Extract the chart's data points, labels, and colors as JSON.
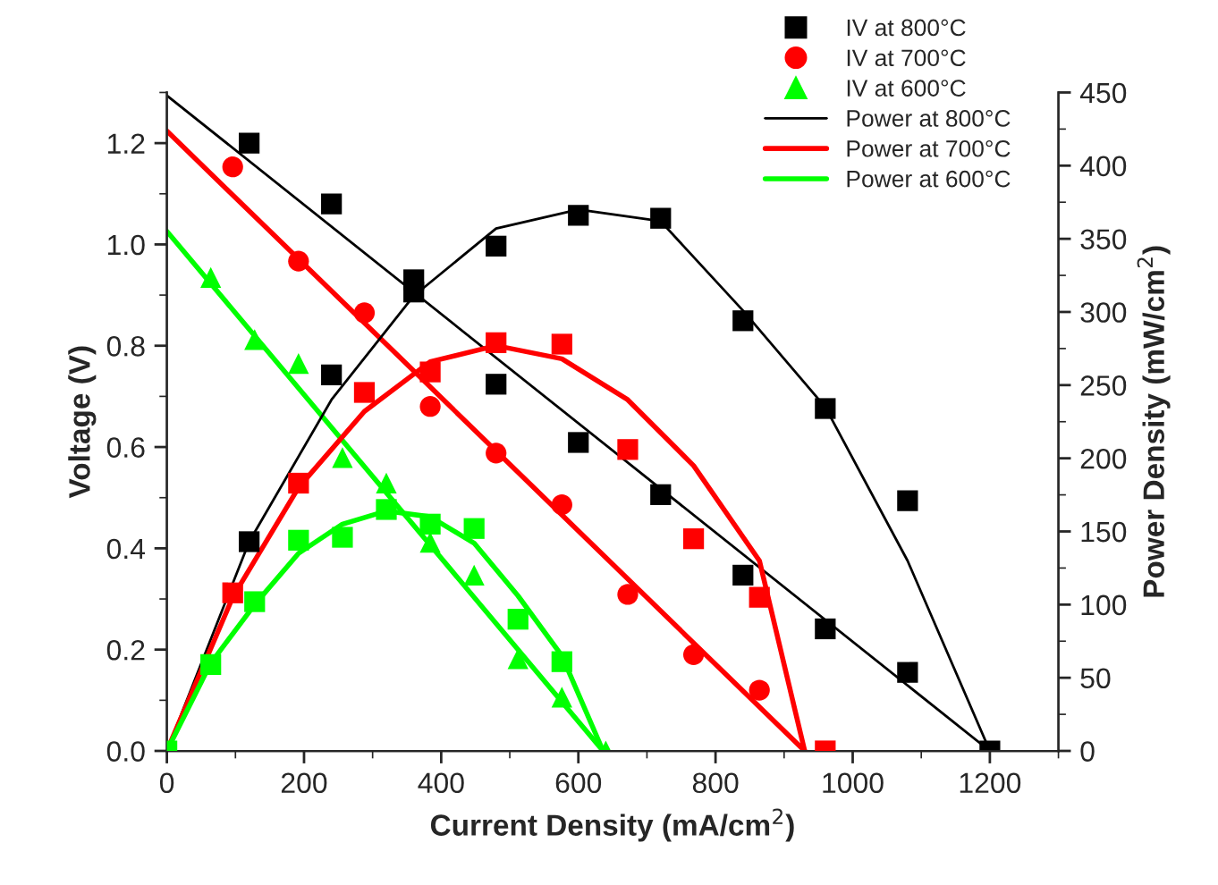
{
  "chart_data": {
    "type": "scatter",
    "xlabel": "Current Density (mA/cm$^{2}$)",
    "ylabel": "Voltage (V)",
    "y2label": "Power Density (mW/cm$^{2}$)",
    "xlim": [
      0,
      1300
    ],
    "xticks": [
      0,
      200,
      400,
      600,
      800,
      1000,
      1200
    ],
    "ylim": [
      0,
      1.3
    ],
    "yticks": [
      {
        "value": 0,
        "label": "0.0"
      },
      {
        "value": 0.2,
        "label": "0.2"
      },
      {
        "value": 0.4,
        "label": "0.4"
      },
      {
        "value": 0.6,
        "label": "0.6"
      },
      {
        "value": 0.8,
        "label": "0.8"
      },
      {
        "value": 1.0,
        "label": "1.0"
      },
      {
        "value": 1.2,
        "label": "1.2"
      }
    ],
    "y2lim": [
      0,
      450
    ],
    "y2ticks": [
      0,
      50,
      100,
      150,
      200,
      250,
      300,
      350,
      400,
      450
    ],
    "legend": "top right",
    "grid": false,
    "series": [
      {
        "name": "IV at 800°C",
        "marker": "square",
        "color": "#000000",
        "x": [
          120,
          240,
          360,
          480,
          600,
          720,
          840,
          960,
          1080,
          1200
        ],
        "values": [
          1.2,
          1.08,
          0.906,
          0.724,
          0.609,
          0.506,
          0.347,
          0.241,
          0.155,
          0
        ]
      },
      {
        "name": "IV at 700°C",
        "marker": "circle",
        "color": "#ff0000",
        "x": [
          96,
          192,
          288,
          384,
          480,
          576,
          672,
          768,
          864
        ],
        "values": [
          1.153,
          0.967,
          0.865,
          0.68,
          0.588,
          0.486,
          0.309,
          0.19,
          0.12
        ]
      },
      {
        "name": "IV at 600°C",
        "marker": "triangle",
        "color": "#00ff00",
        "x": [
          64,
          128,
          192,
          256,
          320,
          384,
          448,
          512,
          576,
          640
        ],
        "values": [
          0.935,
          0.812,
          0.765,
          0.579,
          0.529,
          0.412,
          0.347,
          0.182,
          0.106,
          0
        ]
      },
      {
        "name": "Power at 800°C",
        "type": "line",
        "color": "#000000",
        "axis": "y2",
        "x": [
          0,
          120,
          240,
          360,
          480,
          600,
          720,
          840,
          960,
          1080,
          1200
        ],
        "values": [
          0,
          143,
          240,
          311,
          357,
          370,
          362,
          301,
          235,
          130,
          0
        ]
      },
      {
        "name": "Power at 700°C",
        "type": "line",
        "color": "#ff0000",
        "axis": "y2",
        "x": [
          0,
          96,
          192,
          288,
          384,
          480,
          576,
          672,
          768,
          864,
          930
        ],
        "values": [
          0,
          105,
          180,
          232,
          266,
          277,
          268,
          240,
          195,
          130,
          0
        ]
      },
      {
        "name": "Power at 600°C",
        "type": "line",
        "color": "#00ff00",
        "axis": "y2",
        "x": [
          0,
          64,
          128,
          192,
          256,
          320,
          384,
          448,
          512,
          576,
          636
        ],
        "values": [
          0,
          60,
          100,
          135,
          155,
          164,
          160,
          142,
          106,
          65,
          0
        ]
      },
      {
        "marker": "square",
        "color": "#000000",
        "axis": "y2",
        "x": [
          120,
          240,
          360,
          480,
          600,
          720,
          840,
          960,
          1080
        ],
        "values": [
          143,
          257,
          322,
          345,
          366,
          364,
          294,
          234,
          171
        ]
      },
      {
        "marker": "square",
        "color": "#ff0000",
        "axis": "y2",
        "x": [
          96,
          192,
          288,
          384,
          480,
          576,
          672,
          768,
          864,
          960
        ],
        "values": [
          108,
          183,
          245,
          259,
          279,
          278,
          206,
          145,
          105,
          0
        ]
      },
      {
        "marker": "square",
        "color": "#00ff00",
        "axis": "y2",
        "x": [
          0,
          64,
          128,
          192,
          256,
          320,
          384,
          448,
          512,
          576
        ],
        "values": [
          0,
          59,
          102,
          144,
          146,
          165,
          155,
          152,
          90,
          61
        ]
      },
      {
        "type": "line",
        "color": "#000000",
        "x": [
          0,
          1200
        ],
        "values": [
          1.294,
          0
        ]
      },
      {
        "type": "line",
        "color": "#ff0000",
        "x": [
          0,
          930
        ],
        "values": [
          1.224,
          0
        ]
      },
      {
        "type": "line",
        "color": "#00ff00",
        "x": [
          0,
          636
        ],
        "values": [
          1.026,
          0
        ]
      }
    ]
  }
}
